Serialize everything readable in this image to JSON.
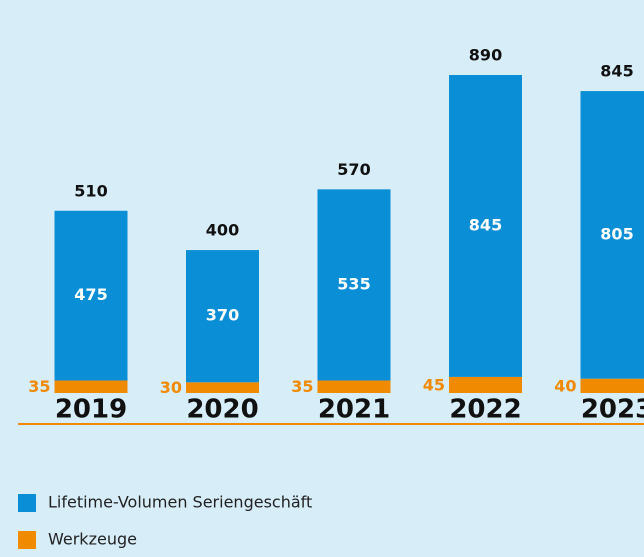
{
  "chart_data": {
    "type": "stacked_bar",
    "categories": [
      "2019",
      "2020",
      "2021",
      "2022",
      "2023"
    ],
    "series": [
      {
        "name": "Lifetime-Volumen Seriengeschäft",
        "color": "#0a8fd6",
        "values": [
          475,
          370,
          535,
          845,
          805
        ]
      },
      {
        "name": "Werkzeuge",
        "color": "#f08a00",
        "values": [
          35,
          30,
          35,
          45,
          40
        ]
      }
    ],
    "totals": [
      510,
      400,
      570,
      890,
      845
    ]
  }
}
